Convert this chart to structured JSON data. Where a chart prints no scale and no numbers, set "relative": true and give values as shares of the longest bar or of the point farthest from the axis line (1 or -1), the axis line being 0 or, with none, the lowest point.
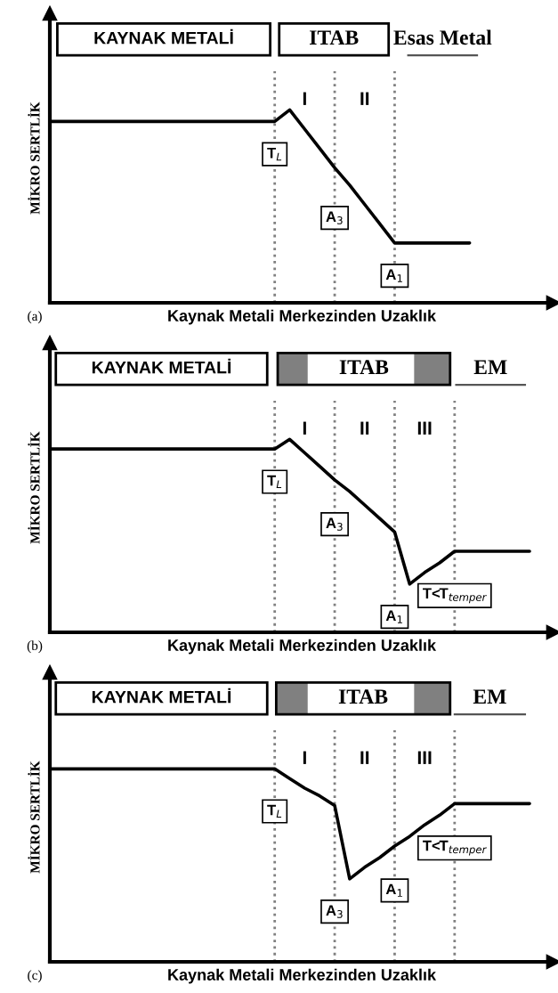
{
  "chart_data": [
    {
      "type": "line",
      "relative": true,
      "tick_labels": false,
      "grid": "x",
      "xlabel": "Kaynak Metali Merkezinden Uzaklık",
      "ylabel": "MİKRO SERTLİK",
      "categories": [
        null,
        null,
        null,
        null,
        null,
        null,
        null,
        null,
        null,
        null,
        null,
        null,
        null,
        null,
        null,
        null,
        null,
        null,
        null,
        null,
        null,
        null,
        null,
        null,
        null,
        null,
        null,
        null,
        null,
        null,
        null,
        null,
        null
      ],
      "series": [
        {
          "color": "#000000",
          "values": [
            0.94,
            0.94,
            0.94,
            0.94,
            0.94,
            0.94,
            0.94,
            0.94,
            0.94,
            0.94,
            0.94,
            0.94,
            0.94,
            0.94,
            0.94,
            0.94,
            1.0,
            0.9,
            0.8,
            0.7,
            0.61,
            0.51,
            0.41,
            0.31,
            0.31,
            0.31,
            0.31,
            0.31,
            0.31,
            null,
            null,
            null,
            null
          ]
        }
      ],
      "annotations": [
        "(a)",
        "KAYNAK METALİ",
        "ITAB",
        "Esas Metal",
        "I",
        "II",
        "T$_{L}$",
        "A$_{3}$",
        "A$_{1}$"
      ]
    },
    {
      "type": "line",
      "relative": true,
      "tick_labels": false,
      "grid": "x",
      "xlabel": "Kaynak Metali Merkezinden Uzaklık",
      "ylabel": "MİKRO SERTLİK",
      "categories": [
        null,
        null,
        null,
        null,
        null,
        null,
        null,
        null,
        null,
        null,
        null,
        null,
        null,
        null,
        null,
        null,
        null,
        null,
        null,
        null,
        null,
        null,
        null,
        null,
        null,
        null,
        null,
        null,
        null,
        null,
        null,
        null,
        null
      ],
      "series": [
        {
          "color": "#000000",
          "values": [
            0.95,
            0.95,
            0.95,
            0.95,
            0.95,
            0.95,
            0.95,
            0.95,
            0.95,
            0.95,
            0.95,
            0.95,
            0.95,
            0.95,
            0.95,
            0.95,
            1.0,
            0.93,
            0.86,
            0.79,
            0.73,
            0.66,
            0.59,
            0.52,
            0.25,
            0.31,
            0.36,
            0.42,
            0.42,
            0.42,
            0.42,
            0.42,
            0.42
          ]
        }
      ],
      "annotations": [
        "(b)",
        "KAYNAK METALİ",
        "ITAB",
        "EM",
        "I",
        "II",
        "III",
        "T$_{L}$",
        "A$_{3}$",
        "A$_{1}$",
        "T<T$_{temper}$"
      ]
    },
    {
      "type": "line",
      "relative": true,
      "tick_labels": false,
      "grid": "x",
      "xlabel": "Kaynak Metali Merkezinden Uzaklık",
      "ylabel": "MİKRO SERTLİK",
      "categories": [
        null,
        null,
        null,
        null,
        null,
        null,
        null,
        null,
        null,
        null,
        null,
        null,
        null,
        null,
        null,
        null,
        null,
        null,
        null,
        null,
        null,
        null,
        null,
        null,
        null,
        null,
        null,
        null,
        null,
        null,
        null,
        null,
        null
      ],
      "series": [
        {
          "color": "#000000",
          "values": [
            1.0,
            1.0,
            1.0,
            1.0,
            1.0,
            1.0,
            1.0,
            1.0,
            1.0,
            1.0,
            1.0,
            1.0,
            1.0,
            1.0,
            1.0,
            1.0,
            0.95,
            0.9,
            0.86,
            0.81,
            0.43,
            0.49,
            0.54,
            0.6,
            0.65,
            0.71,
            0.76,
            0.82,
            0.82,
            0.82,
            0.82,
            0.82,
            0.82
          ]
        }
      ],
      "annotations": [
        "(c)",
        "KAYNAK METALİ",
        "ITAB",
        "EM",
        "I",
        "II",
        "III",
        "T$_{L}$",
        "A$_{3}$",
        "A$_{1}$",
        "T<T$_{temper}$"
      ]
    }
  ]
}
